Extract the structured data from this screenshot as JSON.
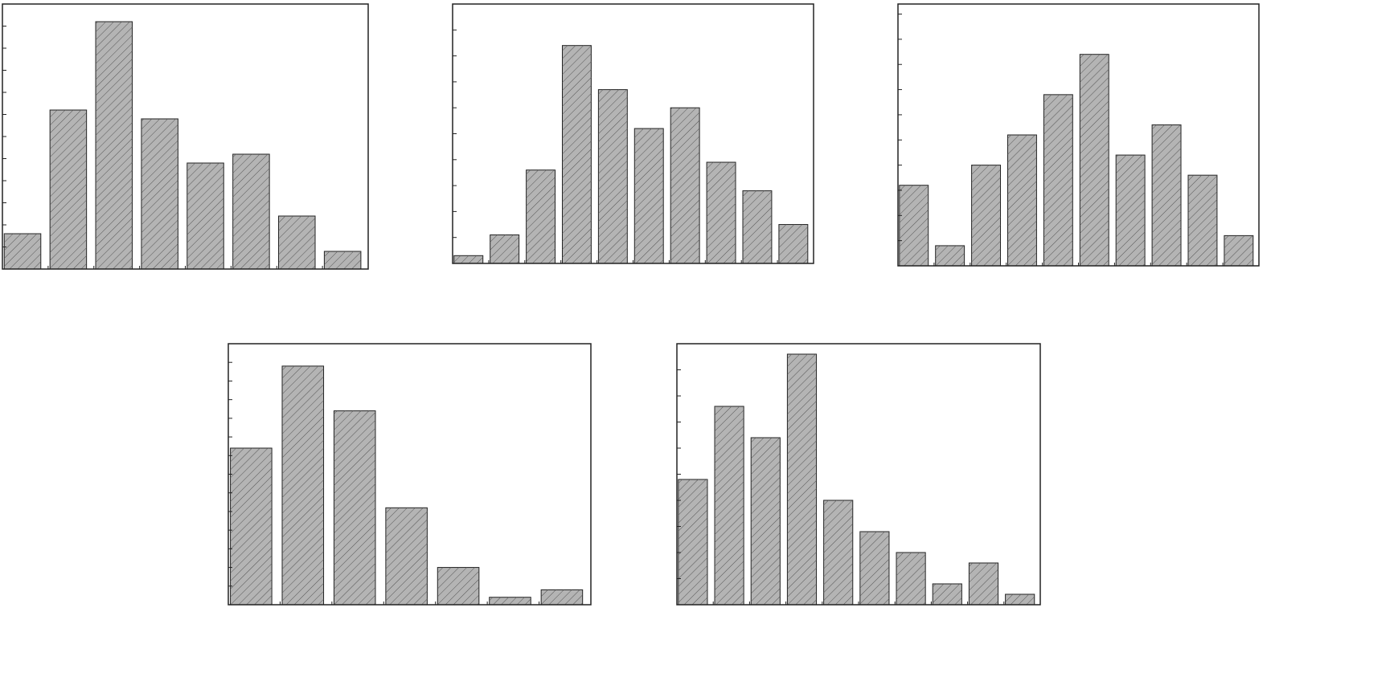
{
  "chart_data": [
    {
      "type": "bar",
      "categories": [
        null,
        null,
        null,
        null,
        null,
        null,
        null,
        null
      ],
      "values": [
        1.6,
        7.2,
        11.2,
        6.8,
        4.8,
        5.2,
        2.4,
        0.8
      ],
      "color": "#b4b4b4",
      "ylim": [
        0,
        12
      ],
      "yticks": [
        0,
        1,
        2,
        3,
        4,
        5,
        6,
        7,
        8,
        9,
        10,
        11,
        12
      ]
    },
    {
      "type": "bar",
      "categories": [
        null,
        null,
        null,
        null,
        null,
        null,
        null,
        null,
        null,
        null
      ],
      "values": [
        0.3,
        1.1,
        3.6,
        8.4,
        6.7,
        5.2,
        6.0,
        3.9,
        2.8,
        1.5
      ],
      "color": "#b4b4b4",
      "ylim": [
        0,
        10
      ],
      "yticks": [
        0,
        1,
        2,
        3,
        4,
        5,
        6,
        7,
        8,
        9
      ]
    },
    {
      "type": "bar",
      "categories": [
        null,
        null,
        null,
        null,
        null,
        null,
        null,
        null,
        null,
        null
      ],
      "values": [
        3.2,
        0.8,
        4.0,
        5.2,
        6.8,
        8.4,
        4.4,
        5.6,
        3.6,
        1.2
      ],
      "color": "#b4b4b4",
      "ylim": [
        0,
        10.4
      ],
      "yticks": [
        0,
        1,
        2,
        3,
        4,
        5,
        6,
        7,
        8,
        9,
        10
      ]
    },
    {
      "type": "bar",
      "categories": [
        null,
        null,
        null,
        null,
        null,
        null,
        null
      ],
      "values": [
        8.4,
        12.8,
        10.4,
        5.2,
        2.0,
        0.4,
        0.8
      ],
      "color": "#b4b4b4",
      "ylim": [
        0,
        14
      ],
      "yticks": [
        0,
        1,
        2,
        3,
        4,
        5,
        6,
        7,
        8,
        9,
        10,
        11,
        12,
        13
      ]
    },
    {
      "type": "bar",
      "categories": [
        null,
        null,
        null,
        null,
        null,
        null,
        null,
        null,
        null,
        null
      ],
      "values": [
        4.8,
        7.6,
        6.4,
        9.6,
        4.0,
        2.8,
        2.0,
        0.8,
        1.6,
        0.4
      ],
      "color": "#b4b4b4",
      "ylim": [
        0,
        10
      ],
      "yticks": [
        0,
        1,
        2,
        3,
        4,
        5,
        6,
        7,
        8,
        9
      ]
    }
  ]
}
